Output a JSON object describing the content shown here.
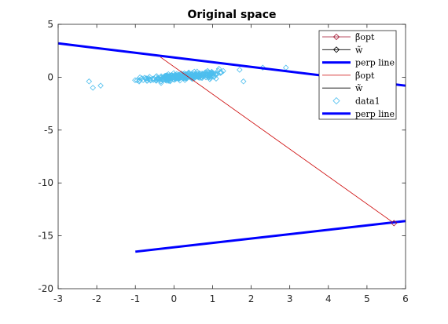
{
  "chart_data": {
    "type": "line",
    "title": "Original space",
    "xlabel": "",
    "ylabel": "",
    "xlim": [
      -3,
      6
    ],
    "ylim": [
      -20,
      5
    ],
    "xticks": [
      -3,
      -2,
      -1,
      0,
      1,
      2,
      3,
      4,
      5,
      6
    ],
    "yticks": [
      -20,
      -15,
      -10,
      -5,
      0,
      5
    ],
    "grid": false,
    "legend_position": "top-right",
    "colors": {
      "dark_red": "#a2142f",
      "red": "#cc0000",
      "black": "#000000",
      "blue": "#0000ff",
      "cyan": "#4dbeee",
      "axes": "#262626"
    },
    "legend": [
      {
        "label": "β̃opt",
        "style": "line-diamond",
        "color": "#a2142f"
      },
      {
        "label": "w̃",
        "style": "line-diamond",
        "color": "#000000"
      },
      {
        "label": "perp line",
        "style": "thick-line",
        "color": "#0000ff"
      },
      {
        "label": "β̃opt",
        "style": "line",
        "color": "#cc0000"
      },
      {
        "label": "w̃",
        "style": "line",
        "color": "#000000"
      },
      {
        "label": "data1",
        "style": "marker-diamond",
        "color": "#4dbeee"
      },
      {
        "label": "perp line",
        "style": "thick-line",
        "color": "#0000ff"
      }
    ],
    "series": [
      {
        "name": "β̃opt",
        "kind": "line",
        "color": "#cc0000",
        "x": [
          -0.35,
          5.7
        ],
        "y": [
          1.9,
          -13.8
        ]
      },
      {
        "name": "perp line",
        "kind": "thick-line",
        "color": "#0000ff",
        "x": [
          -3,
          6
        ],
        "y": [
          3.2,
          -0.8
        ]
      },
      {
        "name": "perp line",
        "kind": "thick-line",
        "color": "#0000ff",
        "x": [
          -1,
          6
        ],
        "y": [
          -16.5,
          -13.6
        ]
      },
      {
        "name": "β̃opt",
        "kind": "marker",
        "color": "#a2142f",
        "x": [
          5.7
        ],
        "y": [
          -13.8
        ]
      },
      {
        "name": "data1",
        "kind": "scatter",
        "color": "#4dbeee",
        "n": 300,
        "x_range": [
          -2.3,
          2.9
        ],
        "trend": [
          0.0,
          0.28
        ],
        "spread": 0.55,
        "seed": 7,
        "extra_points": [
          [
            -2.2,
            -0.4
          ],
          [
            -2.1,
            -1.0
          ],
          [
            -1.9,
            -0.8
          ],
          [
            1.7,
            0.7
          ],
          [
            1.8,
            -0.4
          ],
          [
            2.3,
            0.9
          ],
          [
            2.9,
            0.9
          ]
        ]
      }
    ]
  }
}
